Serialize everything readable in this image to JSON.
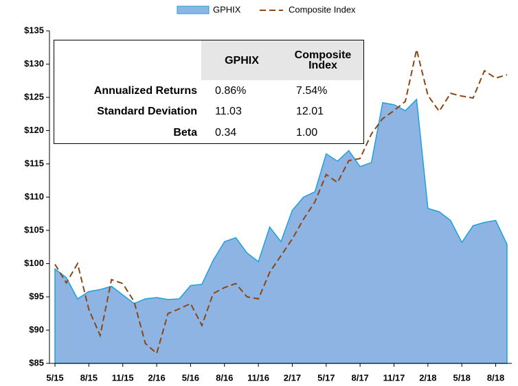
{
  "chart_data": {
    "type": "area-line",
    "categories": [
      "5/15",
      null,
      null,
      "8/15",
      null,
      null,
      "11/15",
      null,
      null,
      "2/16",
      null,
      null,
      "5/16",
      null,
      null,
      "8/16",
      null,
      null,
      "11/16",
      null,
      null,
      "2/17",
      null,
      null,
      "5/17",
      null,
      null,
      "8/17",
      null,
      null,
      "11/17",
      null,
      null,
      "2/18",
      null,
      null,
      "5/18",
      null,
      null,
      "8/18",
      null
    ],
    "series": [
      {
        "name": "GPHIX",
        "kind": "area",
        "color": "#8db4e2",
        "values": [
          99.2,
          97.9,
          94.7,
          95.8,
          96.1,
          96.6,
          95.3,
          94.0,
          94.7,
          94.9,
          94.6,
          94.7,
          96.7,
          96.9,
          100.5,
          103.3,
          103.9,
          101.6,
          100.3,
          105.5,
          103.3,
          108.0,
          110.0,
          110.8,
          116.5,
          115.4,
          117.0,
          114.6,
          115.2,
          124.2,
          123.9,
          123.0,
          124.7,
          108.3,
          107.8,
          106.5,
          103.2,
          105.7,
          106.2,
          106.5,
          102.9
        ]
      },
      {
        "name": "Composite Index",
        "kind": "dashed-line",
        "color": "#8b4513",
        "values": [
          99.9,
          97.1,
          100.0,
          93.1,
          89.2,
          97.6,
          97.0,
          94.3,
          88.0,
          86.5,
          92.5,
          93.2,
          94.0,
          90.7,
          95.5,
          96.4,
          97.0,
          95.0,
          94.7,
          98.7,
          101.2,
          103.7,
          106.7,
          109.3,
          113.4,
          112.2,
          115.5,
          115.8,
          119.5,
          121.8,
          123.0,
          124.4,
          132.2,
          125.3,
          122.9,
          125.6,
          125.2,
          124.9,
          129.0,
          127.9,
          128.4
        ]
      }
    ],
    "ylim": [
      85,
      135
    ],
    "yticks": [
      {
        "value": 85,
        "label": "$85"
      },
      {
        "value": 90,
        "label": "$90"
      },
      {
        "value": 95,
        "label": "$95"
      },
      {
        "value": 100,
        "label": "$100"
      },
      {
        "value": 105,
        "label": "$105"
      },
      {
        "value": 110,
        "label": "$110"
      },
      {
        "value": 115,
        "label": "$115"
      },
      {
        "value": 120,
        "label": "$120"
      },
      {
        "value": 125,
        "label": "$125"
      },
      {
        "value": 130,
        "label": "$130"
      },
      {
        "value": 135,
        "label": "$135"
      }
    ],
    "grid": false,
    "legend": "top",
    "table": {
      "columns": [
        "GPHIX",
        "Composite Index"
      ],
      "rows": [
        {
          "label": "Annualized Returns",
          "values": [
            "0.86%",
            "7.54%"
          ]
        },
        {
          "label": "Standard Deviation",
          "values": [
            "11.03",
            "12.01"
          ]
        },
        {
          "label": "Beta",
          "values": [
            "0.34",
            "1.00"
          ]
        }
      ]
    }
  }
}
